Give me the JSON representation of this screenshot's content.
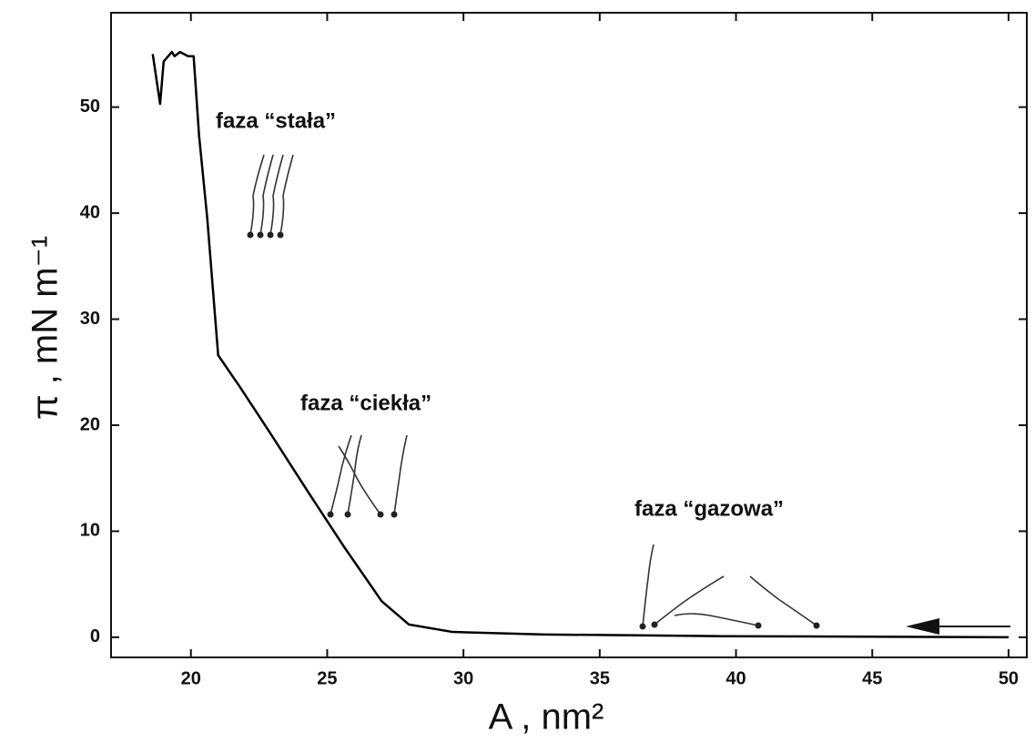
{
  "chart_data": {
    "type": "line",
    "x_label": "A ,  nm²",
    "y_label": "π ,  mN m⁻¹",
    "annotations": [
      "faza “stała”",
      "faza “ciekła”",
      "faza “gazowa”"
    ],
    "x": [
      18.6,
      18.87,
      19.0,
      19.3,
      19.4,
      19.6,
      19.9,
      20.1,
      20.3,
      20.6,
      21.0,
      21.8,
      23.0,
      24.3,
      25.6,
      27.0,
      28.0,
      29.6,
      33.0,
      39.6,
      50
    ],
    "values": [
      55.0,
      50.3,
      54.3,
      55.2,
      54.8,
      55.2,
      54.8,
      54.8,
      47.3,
      39.5,
      26.6,
      23.6,
      18.9,
      13.7,
      8.6,
      3.4,
      1.2,
      0.5,
      0.26,
      0.1,
      0
    ],
    "color": "#000000",
    "xlim": [
      17.07,
      50.67
    ],
    "ylim": [
      -1.9,
      58.9
    ],
    "xticks": [
      20,
      25,
      30,
      35,
      40,
      45,
      50
    ],
    "yticks": [
      0,
      10,
      20,
      30,
      40,
      50
    ]
  }
}
